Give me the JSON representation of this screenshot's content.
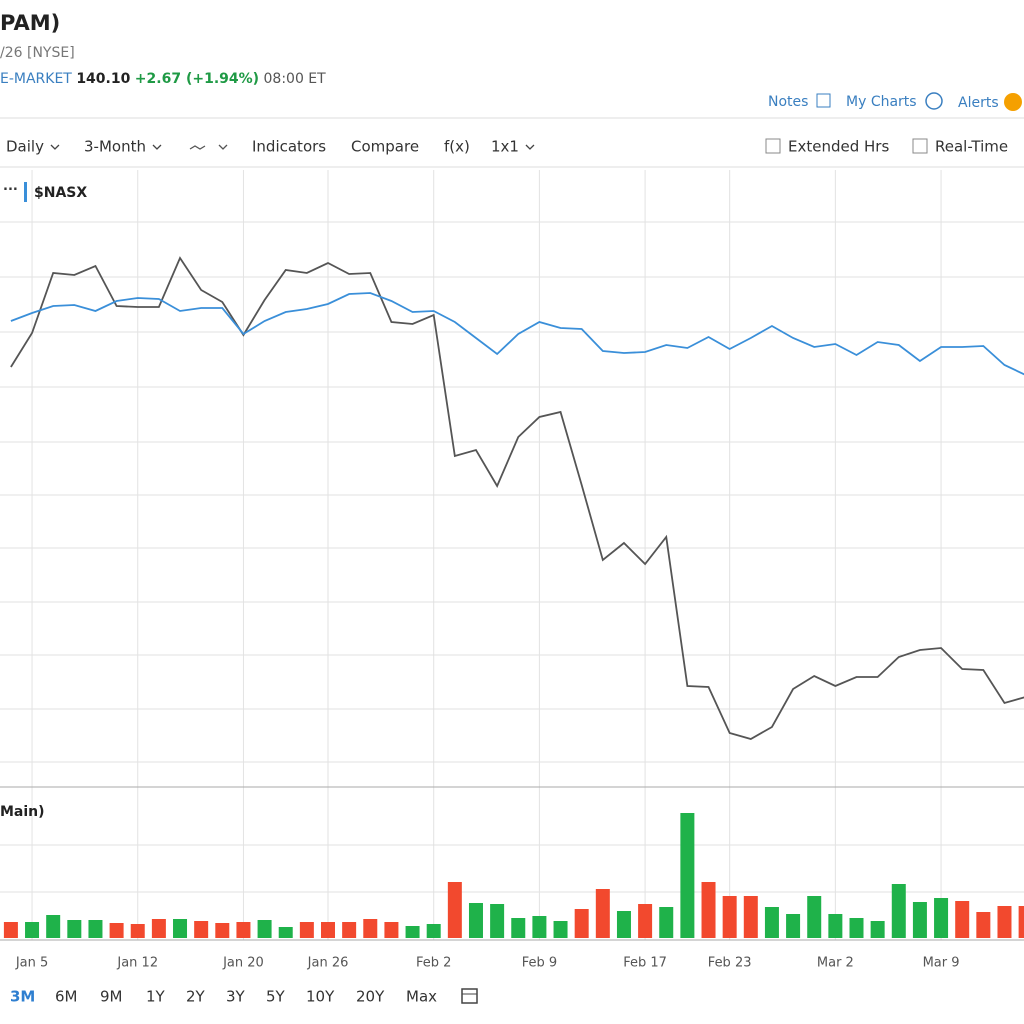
{
  "header": {
    "title": "PAM)",
    "subtitle": "/26 [NYSE]",
    "quote": {
      "session": "E-MARKET",
      "price": "140.10",
      "change": "+2.67 (+1.94%)",
      "time": "08:00 ET"
    }
  },
  "links": [
    "Notes",
    "My Charts",
    "Alerts"
  ],
  "toolbar": {
    "items": [
      "Daily",
      "3-Month",
      "Indicators",
      "Compare",
      "f(x)",
      "1x1"
    ],
    "checkboxes": [
      "Extended Hrs",
      "Real-Time"
    ]
  },
  "ranges": [
    "3M",
    "6M",
    "9M",
    "1Y",
    "2Y",
    "3Y",
    "5Y",
    "10Y",
    "20Y",
    "Max"
  ],
  "chart_data": {
    "type": "line",
    "categories": [
      null,
      "Jan 5",
      null,
      null,
      null,
      null,
      "Jan 12",
      null,
      null,
      null,
      null,
      "Jan 20",
      null,
      null,
      null,
      "Jan 26",
      null,
      null,
      null,
      null,
      "Feb 2",
      null,
      null,
      null,
      null,
      "Feb 9",
      null,
      null,
      null,
      null,
      "Feb 17",
      null,
      null,
      null,
      "Feb 23",
      null,
      null,
      null,
      null,
      "Mar 2",
      null,
      null,
      null,
      null,
      "Mar 9",
      null,
      null,
      null,
      null
    ],
    "ylim": [
      0,
      615
    ],
    "y2lim": [
      0,
      148
    ],
    "volume_label": "Main)",
    "series": [
      {
        "color": "#555555",
        "values": [
          418,
          452,
          512,
          510,
          519,
          479,
          478,
          478,
          527,
          495,
          483,
          450,
          485,
          515,
          512,
          522,
          511,
          512,
          463,
          461,
          470,
          329,
          335,
          299,
          348,
          368,
          373,
          300,
          225,
          242,
          221,
          248,
          99,
          98,
          52,
          46,
          58,
          96,
          109,
          99,
          108,
          108,
          128,
          135,
          137,
          116,
          115,
          82,
          88
        ]
      },
      {
        "name": "$NASX",
        "color": "#3a8fd9",
        "values": [
          464,
          472,
          479,
          480,
          474,
          484,
          487,
          486,
          474,
          477,
          477,
          451,
          464,
          473,
          476,
          481,
          491,
          492,
          484,
          473,
          474,
          463,
          447,
          431,
          451,
          463,
          457,
          456,
          434,
          432,
          433,
          440,
          437,
          448,
          436,
          447,
          459,
          447,
          438,
          441,
          430,
          443,
          440,
          424,
          438,
          438,
          439,
          420,
          410
        ]
      },
      {
        "type": "bar",
        "axis": "y2",
        "values": [
          16,
          16,
          23,
          18,
          18,
          15,
          14,
          19,
          19,
          17,
          15,
          16,
          18,
          11,
          16,
          16,
          16,
          19,
          16,
          12,
          14,
          56,
          35,
          34,
          20,
          22,
          17,
          29,
          49,
          27,
          34,
          31,
          125,
          56,
          42,
          42,
          31,
          24,
          42,
          24,
          20,
          17,
          54,
          36,
          40,
          37,
          26,
          32,
          32
        ],
        "colors": [
          "#f2492e",
          "#1fb24a",
          "#1fb24a",
          "#1fb24a",
          "#1fb24a",
          "#f2492e",
          "#f2492e",
          "#f2492e",
          "#1fb24a",
          "#f2492e",
          "#f2492e",
          "#f2492e",
          "#1fb24a",
          "#1fb24a",
          "#f2492e",
          "#f2492e",
          "#f2492e",
          "#f2492e",
          "#f2492e",
          "#1fb24a",
          "#1fb24a",
          "#f2492e",
          "#1fb24a",
          "#1fb24a",
          "#1fb24a",
          "#1fb24a",
          "#1fb24a",
          "#f2492e",
          "#f2492e",
          "#1fb24a",
          "#f2492e",
          "#1fb24a",
          "#1fb24a",
          "#f2492e",
          "#f2492e",
          "#f2492e",
          "#1fb24a",
          "#1fb24a",
          "#1fb24a",
          "#1fb24a",
          "#1fb24a",
          "#1fb24a",
          "#1fb24a",
          "#1fb24a",
          "#1fb24a",
          "#f2492e",
          "#f2492e",
          "#f2492e",
          "#f2492e"
        ]
      }
    ]
  }
}
